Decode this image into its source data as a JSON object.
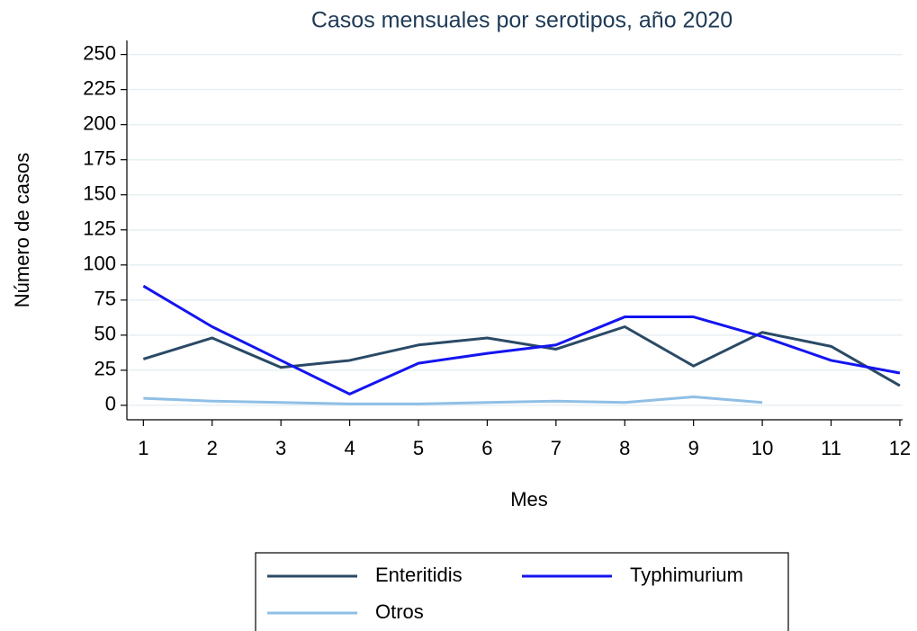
{
  "chart_data": {
    "type": "line",
    "title": "Casos mensuales por serotipos, año 2020",
    "x_label": "Mes",
    "y_label": "Número de casos",
    "x": [
      1,
      2,
      3,
      4,
      5,
      6,
      7,
      8,
      9,
      10,
      11,
      12
    ],
    "series": [
      {
        "name": "Enteritidis",
        "color": "#2a4a66",
        "values": [
          33,
          48,
          27,
          32,
          43,
          48,
          40,
          56,
          28,
          52,
          42,
          14
        ]
      },
      {
        "name": "Typhimurium",
        "color": "#1414f0",
        "values": [
          85,
          56,
          32,
          8,
          30,
          37,
          43,
          63,
          63,
          49,
          32,
          23
        ]
      },
      {
        "name": "Otros",
        "color": "#8fbfe6",
        "values": [
          5,
          3,
          2,
          1,
          1,
          2,
          3,
          2,
          6,
          2,
          null,
          null
        ]
      }
    ],
    "xlim": [
      0.76,
      12.04
    ],
    "xticks": [
      1,
      2,
      3,
      4,
      5,
      6,
      7,
      8,
      9,
      10,
      11,
      12
    ],
    "ylim": [
      -10.3,
      260
    ],
    "yticks": [
      0,
      25,
      50,
      75,
      100,
      125,
      150,
      175,
      200,
      225,
      250
    ],
    "grid": true,
    "legend": "bottom"
  }
}
